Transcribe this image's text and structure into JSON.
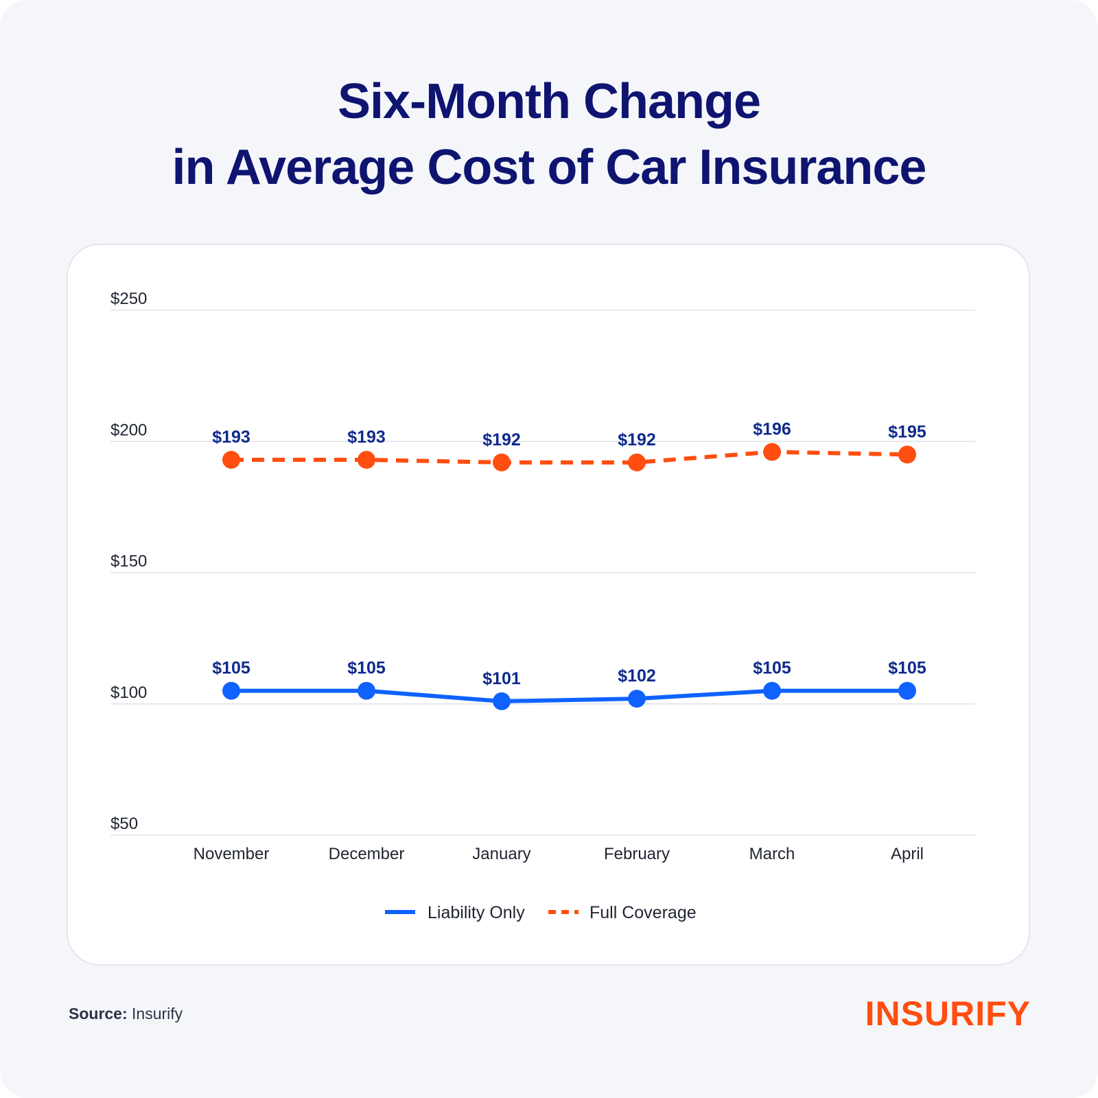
{
  "title_line1": "Six-Month Change",
  "title_line2": "in Average Cost of Car Insurance",
  "source": {
    "label": "Source:",
    "value": "Insurify"
  },
  "logo": {
    "text": "INSURIFY",
    "color": "#ff4e10"
  },
  "chart_data": {
    "type": "line",
    "title": "Six-Month Change in Average Cost of Car Insurance",
    "categories": [
      "November",
      "December",
      "January",
      "February",
      "March",
      "April"
    ],
    "yticks": [
      "$250",
      "$200",
      "$150",
      "$100",
      "$50"
    ],
    "ylim": [
      50,
      250
    ],
    "grid": true,
    "legend_position": "bottom",
    "series": [
      {
        "name": "Liability Only",
        "values": [
          105,
          105,
          101,
          102,
          105,
          105
        ],
        "labels": [
          "$105",
          "$105",
          "$101",
          "$102",
          "$105",
          "$105"
        ],
        "color": "#0f62fe",
        "style": "solid"
      },
      {
        "name": "Full Coverage",
        "values": [
          193,
          193,
          192,
          192,
          196,
          195
        ],
        "labels": [
          "$193",
          "$193",
          "$192",
          "$192",
          "$196",
          "$195"
        ],
        "color": "#ff4e10",
        "style": "dashed"
      }
    ],
    "label_color": "#0e2a8c",
    "grid_color": "#dfe2e8",
    "text_color": "#1f2430"
  }
}
